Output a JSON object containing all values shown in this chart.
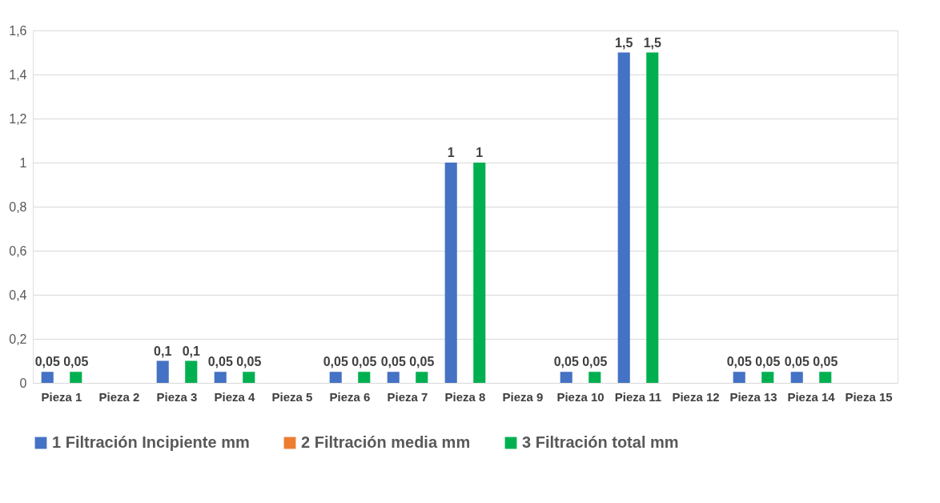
{
  "chart_data": {
    "type": "bar",
    "categories": [
      "Pieza 1",
      "Pieza 2",
      "Pieza 3",
      "Pieza 4",
      "Pieza 5",
      "Pieza 6",
      "Pieza 7",
      "Pieza 8",
      "Pieza 9",
      "Pieza 10",
      "Pieza 11",
      "Pieza 12",
      "Pieza 13",
      "Pieza 14",
      "Pieza 15"
    ],
    "series": [
      {
        "name": "1 Filtración Incipiente mm",
        "color": "#4472c4",
        "values": [
          0.05,
          null,
          0.1,
          0.05,
          null,
          0.05,
          0.05,
          1,
          null,
          0.05,
          1.5,
          null,
          0.05,
          0.05,
          null
        ],
        "value_labels": [
          "0,05",
          null,
          "0,1",
          "0,05",
          null,
          "0,05",
          "0,05",
          "1",
          null,
          "0,05",
          "1,5",
          null,
          "0,05",
          "0,05",
          null
        ]
      },
      {
        "name": "2 Filtración media mm",
        "color": "#ed7d31",
        "values": [
          null,
          null,
          null,
          null,
          null,
          null,
          null,
          null,
          null,
          null,
          null,
          null,
          null,
          null,
          null
        ]
      },
      {
        "name": "3 Filtración total mm",
        "color": "#00b050",
        "values": [
          0.05,
          null,
          0.1,
          0.05,
          null,
          0.05,
          0.05,
          1,
          null,
          0.05,
          1.5,
          null,
          0.05,
          0.05,
          null
        ],
        "value_labels": [
          "0,05",
          null,
          "0,1",
          "0,05",
          null,
          "0,05",
          "0,05",
          "1",
          null,
          "0,05",
          "1,5",
          null,
          "0,05",
          "0,05",
          null
        ]
      }
    ],
    "ylim": [
      0,
      1.6
    ],
    "yticks": [
      0,
      {
        "value": 0.2,
        "label": "0,2"
      },
      {
        "value": 0.4,
        "label": "0,4"
      },
      {
        "value": 0.6,
        "label": "0,6"
      },
      {
        "value": 0.8,
        "label": "0,8"
      },
      1,
      {
        "value": 1.2,
        "label": "1,2"
      },
      {
        "value": 1.4,
        "label": "1,4"
      },
      {
        "value": 1.6,
        "label": "1,6"
      }
    ],
    "grid": "y",
    "legend": "bottom"
  }
}
